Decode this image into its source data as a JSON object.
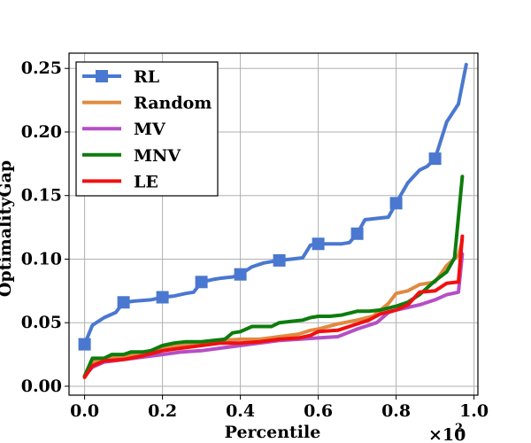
{
  "chart_data": {
    "type": "line",
    "xlabel": "Percentile",
    "ylabel": "OptimalityGap",
    "x_multiplier": "×10",
    "x_multiplier_exp": "2",
    "xlim": [
      -0.04,
      1.01
    ],
    "ylim": [
      -0.007,
      0.262
    ],
    "x_ticks": [
      {
        "value": 0.0,
        "label": "0.0"
      },
      {
        "value": 0.2,
        "label": "0.2"
      },
      {
        "value": 0.4,
        "label": "0.4"
      },
      {
        "value": 0.6,
        "label": "0.6"
      },
      {
        "value": 0.8,
        "label": "0.8"
      },
      {
        "value": 1.0,
        "label": "1.0"
      }
    ],
    "y_ticks": [
      {
        "value": 0.0,
        "label": "0.00"
      },
      {
        "value": 0.05,
        "label": "0.05"
      },
      {
        "value": 0.1,
        "label": "0.10"
      },
      {
        "value": 0.15,
        "label": "0.15"
      },
      {
        "value": 0.2,
        "label": "0.20"
      },
      {
        "value": 0.25,
        "label": "0.25"
      }
    ],
    "grid": true,
    "legend_position": "top-left",
    "series": [
      {
        "name": "RL",
        "color": "#4a78d0",
        "marker": "square",
        "points": [
          [
            0.0,
            0.033
          ],
          [
            0.02,
            0.048
          ],
          [
            0.05,
            0.054
          ],
          [
            0.08,
            0.058
          ],
          [
            0.1,
            0.066
          ],
          [
            0.13,
            0.067
          ],
          [
            0.17,
            0.068
          ],
          [
            0.2,
            0.07
          ],
          [
            0.23,
            0.071
          ],
          [
            0.26,
            0.073
          ],
          [
            0.28,
            0.074
          ],
          [
            0.3,
            0.082
          ],
          [
            0.33,
            0.084
          ],
          [
            0.35,
            0.085
          ],
          [
            0.38,
            0.086
          ],
          [
            0.4,
            0.088
          ],
          [
            0.43,
            0.094
          ],
          [
            0.46,
            0.097
          ],
          [
            0.48,
            0.098
          ],
          [
            0.5,
            0.099
          ],
          [
            0.53,
            0.1
          ],
          [
            0.56,
            0.101
          ],
          [
            0.58,
            0.111
          ],
          [
            0.6,
            0.112
          ],
          [
            0.63,
            0.112
          ],
          [
            0.66,
            0.112
          ],
          [
            0.68,
            0.113
          ],
          [
            0.7,
            0.12
          ],
          [
            0.72,
            0.131
          ],
          [
            0.75,
            0.132
          ],
          [
            0.78,
            0.133
          ],
          [
            0.8,
            0.144
          ],
          [
            0.83,
            0.16
          ],
          [
            0.86,
            0.17
          ],
          [
            0.88,
            0.173
          ],
          [
            0.9,
            0.179
          ],
          [
            0.93,
            0.208
          ],
          [
            0.96,
            0.222
          ],
          [
            0.98,
            0.253
          ]
        ],
        "marker_points": [
          [
            0.0,
            0.033
          ],
          [
            0.1,
            0.066
          ],
          [
            0.2,
            0.07
          ],
          [
            0.3,
            0.082
          ],
          [
            0.4,
            0.088
          ],
          [
            0.5,
            0.099
          ],
          [
            0.6,
            0.112
          ],
          [
            0.7,
            0.12
          ],
          [
            0.8,
            0.144
          ],
          [
            0.9,
            0.179
          ]
        ]
      },
      {
        "name": "Random",
        "color": "#e08a40",
        "points": [
          [
            0.0,
            0.008
          ],
          [
            0.02,
            0.019
          ],
          [
            0.05,
            0.022
          ],
          [
            0.1,
            0.023
          ],
          [
            0.15,
            0.026
          ],
          [
            0.2,
            0.03
          ],
          [
            0.25,
            0.032
          ],
          [
            0.3,
            0.034
          ],
          [
            0.35,
            0.036
          ],
          [
            0.4,
            0.037
          ],
          [
            0.45,
            0.037
          ],
          [
            0.5,
            0.039
          ],
          [
            0.55,
            0.041
          ],
          [
            0.58,
            0.044
          ],
          [
            0.6,
            0.045
          ],
          [
            0.65,
            0.049
          ],
          [
            0.7,
            0.052
          ],
          [
            0.74,
            0.055
          ],
          [
            0.78,
            0.065
          ],
          [
            0.8,
            0.073
          ],
          [
            0.83,
            0.075
          ],
          [
            0.86,
            0.08
          ],
          [
            0.9,
            0.082
          ],
          [
            0.93,
            0.095
          ],
          [
            0.96,
            0.103
          ],
          [
            0.97,
            0.115
          ]
        ]
      },
      {
        "name": "MV",
        "color": "#b44fc6",
        "points": [
          [
            0.0,
            0.008
          ],
          [
            0.02,
            0.015
          ],
          [
            0.05,
            0.019
          ],
          [
            0.1,
            0.021
          ],
          [
            0.15,
            0.023
          ],
          [
            0.2,
            0.025
          ],
          [
            0.25,
            0.027
          ],
          [
            0.3,
            0.028
          ],
          [
            0.35,
            0.03
          ],
          [
            0.4,
            0.032
          ],
          [
            0.45,
            0.034
          ],
          [
            0.5,
            0.036
          ],
          [
            0.55,
            0.037
          ],
          [
            0.6,
            0.038
          ],
          [
            0.65,
            0.039
          ],
          [
            0.7,
            0.045
          ],
          [
            0.75,
            0.05
          ],
          [
            0.78,
            0.058
          ],
          [
            0.8,
            0.06
          ],
          [
            0.83,
            0.062
          ],
          [
            0.86,
            0.064
          ],
          [
            0.9,
            0.068
          ],
          [
            0.93,
            0.072
          ],
          [
            0.96,
            0.074
          ],
          [
            0.97,
            0.104
          ]
        ]
      },
      {
        "name": "MNV",
        "color": "#0d7c0d",
        "points": [
          [
            0.0,
            0.008
          ],
          [
            0.02,
            0.022
          ],
          [
            0.05,
            0.022
          ],
          [
            0.07,
            0.025
          ],
          [
            0.1,
            0.025
          ],
          [
            0.12,
            0.027
          ],
          [
            0.15,
            0.027
          ],
          [
            0.17,
            0.028
          ],
          [
            0.2,
            0.032
          ],
          [
            0.23,
            0.034
          ],
          [
            0.26,
            0.035
          ],
          [
            0.3,
            0.035
          ],
          [
            0.33,
            0.036
          ],
          [
            0.36,
            0.037
          ],
          [
            0.38,
            0.042
          ],
          [
            0.4,
            0.043
          ],
          [
            0.43,
            0.047
          ],
          [
            0.46,
            0.047
          ],
          [
            0.48,
            0.047
          ],
          [
            0.5,
            0.05
          ],
          [
            0.53,
            0.051
          ],
          [
            0.56,
            0.052
          ],
          [
            0.58,
            0.054
          ],
          [
            0.6,
            0.055
          ],
          [
            0.63,
            0.055
          ],
          [
            0.66,
            0.056
          ],
          [
            0.7,
            0.059
          ],
          [
            0.73,
            0.059
          ],
          [
            0.76,
            0.06
          ],
          [
            0.8,
            0.063
          ],
          [
            0.83,
            0.066
          ],
          [
            0.86,
            0.072
          ],
          [
            0.9,
            0.083
          ],
          [
            0.93,
            0.09
          ],
          [
            0.95,
            0.101
          ],
          [
            0.97,
            0.165
          ]
        ]
      },
      {
        "name": "LE",
        "color": "#f01010",
        "points": [
          [
            0.0,
            0.007
          ],
          [
            0.02,
            0.016
          ],
          [
            0.05,
            0.02
          ],
          [
            0.1,
            0.021
          ],
          [
            0.15,
            0.024
          ],
          [
            0.2,
            0.028
          ],
          [
            0.25,
            0.03
          ],
          [
            0.3,
            0.032
          ],
          [
            0.35,
            0.034
          ],
          [
            0.4,
            0.034
          ],
          [
            0.45,
            0.035
          ],
          [
            0.5,
            0.037
          ],
          [
            0.55,
            0.038
          ],
          [
            0.58,
            0.04
          ],
          [
            0.6,
            0.043
          ],
          [
            0.65,
            0.044
          ],
          [
            0.7,
            0.049
          ],
          [
            0.73,
            0.052
          ],
          [
            0.76,
            0.057
          ],
          [
            0.8,
            0.06
          ],
          [
            0.83,
            0.064
          ],
          [
            0.86,
            0.074
          ],
          [
            0.9,
            0.075
          ],
          [
            0.93,
            0.081
          ],
          [
            0.96,
            0.082
          ],
          [
            0.97,
            0.118
          ]
        ]
      }
    ]
  }
}
